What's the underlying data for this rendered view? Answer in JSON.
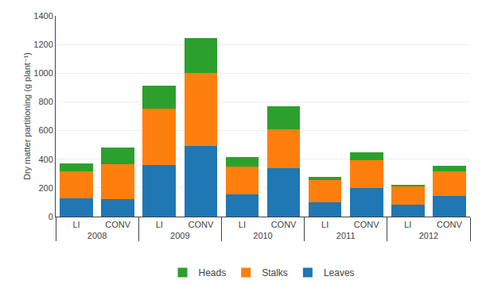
{
  "chart_data": {
    "type": "bar",
    "stacked": true,
    "categories": [
      [
        "2008",
        "LI"
      ],
      [
        "2008",
        "CONV"
      ],
      [
        "2009",
        "LI"
      ],
      [
        "2009",
        "CONV"
      ],
      [
        "2010",
        "LI"
      ],
      [
        "2010",
        "CONV"
      ],
      [
        "2011",
        "LI"
      ],
      [
        "2011",
        "CONV"
      ],
      [
        "2012",
        "LI"
      ],
      [
        "2012",
        "CONV"
      ]
    ],
    "series": [
      {
        "name": "Leaves",
        "values": [
          130,
          120,
          360,
          490,
          155,
          340,
          100,
          200,
          85,
          145
        ]
      },
      {
        "name": "Stalks",
        "values": [
          185,
          245,
          390,
          510,
          195,
          270,
          155,
          195,
          125,
          170
        ]
      },
      {
        "name": "Heads",
        "values": [
          55,
          115,
          165,
          245,
          65,
          160,
          20,
          55,
          12,
          38
        ]
      }
    ],
    "ylabel": "Dry matter partitioning (g plant⁻¹)",
    "ylim": [
      0,
      1400
    ],
    "yticks": [
      0,
      200,
      400,
      600,
      800,
      1000,
      1200,
      1400
    ],
    "grid": true,
    "legend": "bottom"
  }
}
